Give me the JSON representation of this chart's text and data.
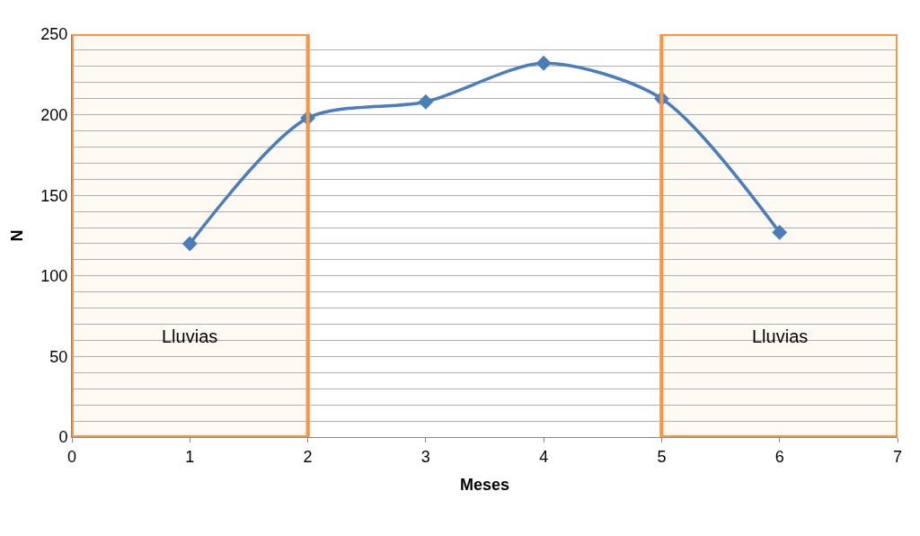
{
  "chart_data": {
    "type": "line",
    "xlabel": "Meses",
    "ylabel": "N",
    "x": [
      1,
      2,
      3,
      4,
      5,
      6
    ],
    "series": [
      {
        "color": "#4a7ebb",
        "values": [
          120,
          198,
          208,
          232,
          210,
          127
        ]
      }
    ],
    "xlim": [
      0,
      7
    ],
    "xticks": [
      0,
      1,
      2,
      3,
      4,
      5,
      6,
      7
    ],
    "ylim": [
      0,
      250
    ],
    "yticks": [
      0,
      {
        "value": 10,
        "label": null
      },
      {
        "value": 20,
        "label": null
      },
      {
        "value": 30,
        "label": null
      },
      {
        "value": 40,
        "label": null
      },
      50,
      {
        "value": 60,
        "label": null
      },
      {
        "value": 70,
        "label": null
      },
      {
        "value": 80,
        "label": null
      },
      {
        "value": 90,
        "label": null
      },
      100,
      {
        "value": 110,
        "label": null
      },
      {
        "value": 120,
        "label": null
      },
      {
        "value": 130,
        "label": null
      },
      {
        "value": 140,
        "label": null
      },
      150,
      {
        "value": 160,
        "label": null
      },
      {
        "value": 170,
        "label": null
      },
      {
        "value": 180,
        "label": null
      },
      {
        "value": 190,
        "label": null
      },
      200,
      {
        "value": 210,
        "label": null
      },
      {
        "value": 220,
        "label": null
      },
      {
        "value": 230,
        "label": null
      },
      {
        "value": 240,
        "label": null
      },
      250
    ],
    "bands": [
      {
        "axis": "x",
        "from": 0,
        "to": 2,
        "label": "Lluvias",
        "color": "#f79646"
      },
      {
        "axis": "x",
        "from": 5,
        "to": 7,
        "label": "Lluvias",
        "color": "#f79646"
      }
    ],
    "grid": "y",
    "marker": "diamond",
    "line_style": "solid",
    "legend": false
  }
}
